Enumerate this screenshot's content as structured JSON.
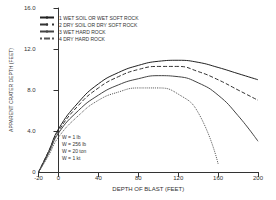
{
  "chart_data": {
    "type": "line",
    "x_label": "DEPTH OF BLAST (FEET)",
    "y_label": "APPARENT CRATER DEPTH (FEET)",
    "x": [
      -20,
      -10,
      0,
      20,
      40,
      60,
      80,
      100,
      120,
      140,
      160,
      180,
      200
    ],
    "series": [
      {
        "name": "1 WET SOIL OR WET SOFT ROCK",
        "color": "#222222",
        "line_style": "solid",
        "values": [
          0,
          2.0,
          4.2,
          6.8,
          8.6,
          9.7,
          10.4,
          10.8,
          10.9,
          10.7,
          10.2,
          9.6,
          9.0
        ]
      },
      {
        "name": "2 DRY SOIL OR DRY SOFT ROCK",
        "color": "#333333",
        "line_style": "dashed",
        "values": [
          0,
          2.0,
          4.0,
          6.5,
          8.2,
          9.3,
          10.0,
          10.3,
          10.3,
          9.8,
          9.0,
          8.0,
          7.0
        ]
      },
      {
        "name": "3 WET HARD ROCK",
        "color": "#444444",
        "line_style": "solid",
        "values": [
          0,
          1.8,
          3.8,
          6.0,
          7.5,
          8.5,
          9.1,
          9.4,
          9.3,
          8.7,
          7.5,
          5.5,
          3.0
        ]
      },
      {
        "name": "4 DRY HARD ROCK",
        "color": "#555555",
        "line_style": "dotted",
        "values": [
          0,
          1.6,
          3.4,
          5.5,
          7.0,
          7.8,
          8.2,
          8.2,
          7.6,
          5.8,
          0.8,
          null,
          null
        ]
      }
    ],
    "annotations": [
      "W = 1 lb",
      "W = 256 lb",
      "W = 20 ton",
      "W = 1 kt"
    ],
    "xlim": [
      -20,
      200
    ],
    "xticks": [
      -20,
      0,
      40,
      80,
      120,
      160,
      200
    ],
    "ylim": [
      0,
      16
    ],
    "yticks": [
      0,
      {
        "value": 4,
        "label": "4.0"
      },
      {
        "value": 8,
        "label": "8.0"
      },
      {
        "value": 12,
        "label": "12.0"
      },
      {
        "value": 16,
        "label": "16.0"
      }
    ],
    "grid": false,
    "legend": "upper left"
  }
}
